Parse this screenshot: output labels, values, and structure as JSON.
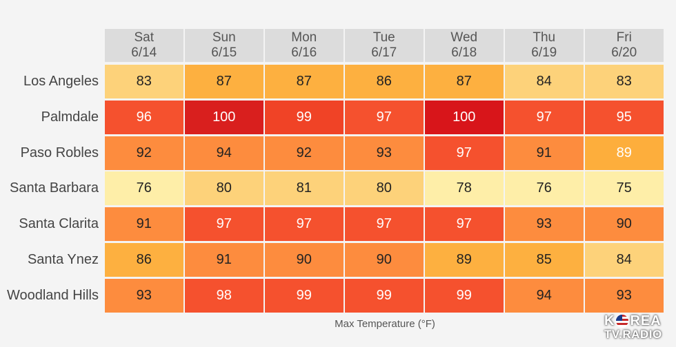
{
  "chart_data": {
    "type": "heatmap",
    "title": "",
    "xlabel": "Max Temperature (°F)",
    "columns": [
      {
        "day": "Sat",
        "date": "6/14"
      },
      {
        "day": "Sun",
        "date": "6/15"
      },
      {
        "day": "Mon",
        "date": "6/16"
      },
      {
        "day": "Tue",
        "date": "6/17"
      },
      {
        "day": "Wed",
        "date": "6/18"
      },
      {
        "day": "Thu",
        "date": "6/19"
      },
      {
        "day": "Fri",
        "date": "6/20"
      }
    ],
    "rows": [
      "Los Angeles",
      "Palmdale",
      "Paso Robles",
      "Santa Barbara",
      "Santa Clarita",
      "Santa Ynez",
      "Woodland Hills"
    ],
    "values": [
      [
        83,
        87,
        87,
        86,
        87,
        84,
        83
      ],
      [
        96,
        100,
        99,
        97,
        100,
        97,
        95
      ],
      [
        92,
        94,
        92,
        93,
        97,
        91,
        89
      ],
      [
        76,
        80,
        81,
        80,
        78,
        76,
        75
      ],
      [
        91,
        97,
        97,
        97,
        97,
        93,
        90
      ],
      [
        86,
        91,
        90,
        90,
        89,
        85,
        84
      ],
      [
        93,
        98,
        99,
        99,
        99,
        94,
        93
      ]
    ],
    "colors": [
      [
        "#fdd27a",
        "#fdb040",
        "#fdb040",
        "#fdb040",
        "#fdb040",
        "#fdd27a",
        "#fdd27a"
      ],
      [
        "#f5512e",
        "#d91f1e",
        "#f04326",
        "#f5512e",
        "#d8151a",
        "#f5512e",
        "#f5512e"
      ],
      [
        "#fd8c3e",
        "#fd8c3e",
        "#fd8c3e",
        "#fd8c3e",
        "#f5512e",
        "#fd8c3e",
        "#fdae3c"
      ],
      [
        "#feeea8",
        "#fdd27a",
        "#fdd27a",
        "#fdd27a",
        "#feeea8",
        "#feeea8",
        "#feeea8"
      ],
      [
        "#fd8c3e",
        "#f5512e",
        "#f5512e",
        "#f5512e",
        "#f5512e",
        "#fd8c3e",
        "#fd8c3e"
      ],
      [
        "#fdb040",
        "#fd8c3e",
        "#fd8c3e",
        "#fd8c3e",
        "#fdb040",
        "#fdb040",
        "#fdd27a"
      ],
      [
        "#fd8c3e",
        "#f5512e",
        "#f5512e",
        "#f5512e",
        "#f5512e",
        "#fd8c3e",
        "#fd8c3e"
      ]
    ]
  },
  "watermark": {
    "line1_left": "K",
    "line1_right": "REA",
    "line2": "TV.RADIO"
  }
}
